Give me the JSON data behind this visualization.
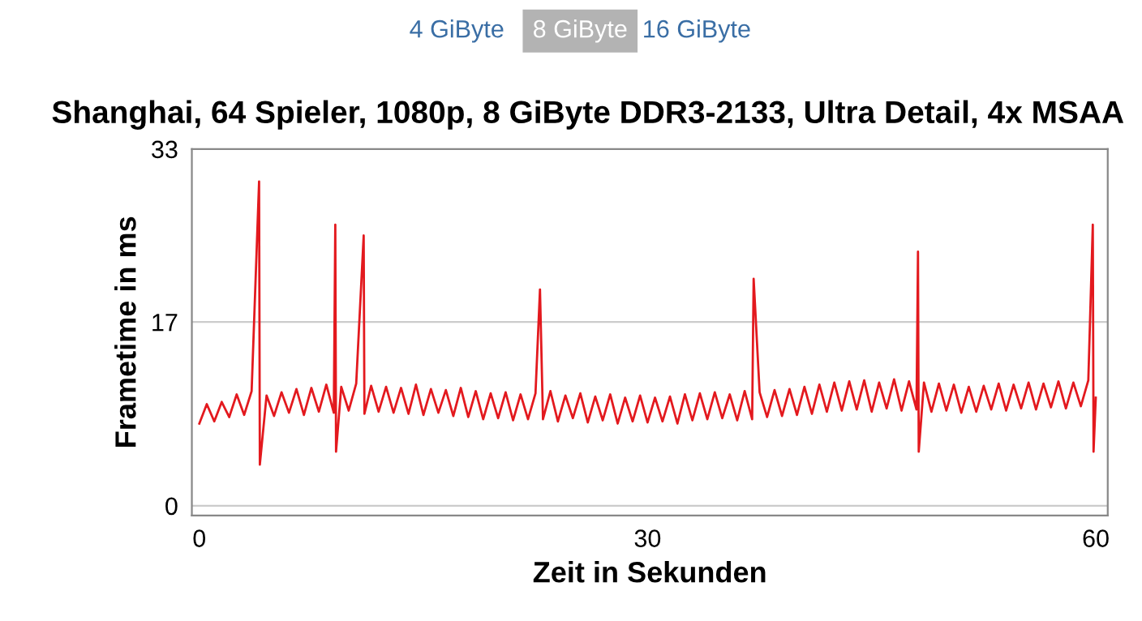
{
  "chart_data": {
    "type": "line",
    "title": "Shanghai, 64 Spieler, 1080p, 8 GiByte DDR3-2133, Ultra Detail, 4x MSAA",
    "xlabel": "Zeit in Sekunden",
    "ylabel": "Frametime in ms",
    "annotations": [
      "4 GiByte",
      "8 GiByte",
      "16 GiByte"
    ],
    "xlim": [
      -0.5,
      60.8
    ],
    "xticks": [
      0,
      30,
      60
    ],
    "ylim": [
      -0.9,
      33
    ],
    "yticks": [
      0,
      17,
      33
    ],
    "grid": "y",
    "marker": "none",
    "line_style": "solid",
    "series": [
      {
        "color": "#e3191e",
        "x": [
          0,
          0.5,
          1,
          1.5,
          2,
          2.5,
          3,
          3.5,
          4,
          4.05,
          4.5,
          5,
          5.5,
          6,
          6.5,
          7,
          7.5,
          8,
          8.5,
          9,
          9.1,
          9.15,
          9.5,
          10,
          10.5,
          11,
          11.05,
          11.5,
          12,
          12.5,
          13,
          13.5,
          14,
          14.5,
          15,
          15.5,
          16,
          16.5,
          17,
          17.5,
          18,
          18.5,
          19,
          19.5,
          20,
          20.5,
          21,
          21.5,
          22,
          22.5,
          22.8,
          23,
          23.5,
          24,
          24.5,
          25,
          25.5,
          26,
          26.5,
          27,
          27.5,
          28,
          28.5,
          29,
          29.5,
          30,
          30.5,
          31,
          31.5,
          32,
          32.5,
          33,
          33.5,
          34,
          34.5,
          35,
          35.5,
          36,
          36.5,
          37,
          37.1,
          37.5,
          38,
          38.5,
          39,
          39.5,
          40,
          40.5,
          41,
          41.5,
          42,
          42.5,
          43,
          43.5,
          44,
          44.5,
          45,
          45.5,
          46,
          46.5,
          47,
          47.5,
          48,
          48.1,
          48.15,
          48.5,
          49,
          49.5,
          50,
          50.5,
          51,
          51.5,
          52,
          52.5,
          53,
          53.5,
          54,
          54.5,
          55,
          55.5,
          56,
          56.5,
          57,
          57.5,
          58,
          58.5,
          59,
          59.5,
          59.8,
          59.85,
          60
        ],
        "values": [
          7.6,
          9.4,
          7.8,
          9.6,
          8.2,
          10.3,
          8.4,
          10.6,
          30,
          3.8,
          10.2,
          8.3,
          10.5,
          8.6,
          10.8,
          8.4,
          10.9,
          8.7,
          11.2,
          8.6,
          26,
          5,
          11.0,
          8.8,
          11.3,
          25,
          8.5,
          11.1,
          8.7,
          11.0,
          8.6,
          10.9,
          8.5,
          11.2,
          8.4,
          10.8,
          8.6,
          10.7,
          8.3,
          10.9,
          8.2,
          10.6,
          8.0,
          10.4,
          8.1,
          10.5,
          7.9,
          10.3,
          8.0,
          10.4,
          20,
          8.0,
          10.6,
          7.8,
          10.2,
          8.1,
          10.4,
          7.7,
          10.1,
          7.9,
          10.3,
          7.6,
          10.0,
          7.8,
          10.2,
          7.7,
          10.0,
          7.8,
          10.1,
          7.6,
          10.3,
          7.9,
          10.4,
          8.0,
          10.5,
          8.1,
          10.3,
          7.9,
          10.6,
          8.0,
          21,
          10.5,
          8.2,
          10.7,
          8.3,
          10.8,
          8.4,
          11.0,
          8.5,
          11.2,
          8.7,
          11.4,
          8.8,
          11.5,
          8.9,
          11.6,
          8.7,
          11.4,
          9.0,
          11.7,
          8.8,
          11.5,
          8.9,
          23.5,
          5,
          11.4,
          8.7,
          11.3,
          8.8,
          11.2,
          8.6,
          11.0,
          8.7,
          11.1,
          8.9,
          11.3,
          8.8,
          11.2,
          9.0,
          11.4,
          8.9,
          11.3,
          9.1,
          11.5,
          9.0,
          11.4,
          9.2,
          11.6,
          26,
          5,
          10.0
        ]
      }
    ]
  }
}
